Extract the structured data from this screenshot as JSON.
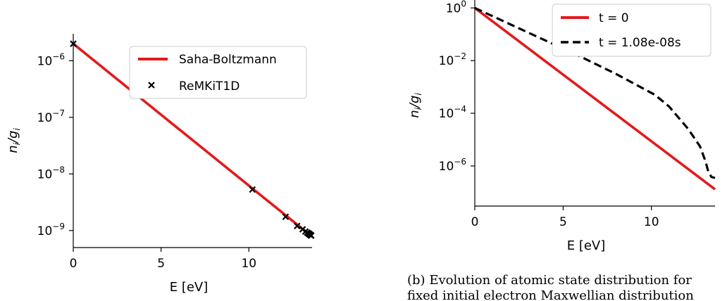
{
  "caption": {
    "label": "(b)",
    "line1": "Evolution of atomic state distribution for",
    "line2": "fixed initial electron Maxwellian distribution"
  },
  "chart_data": [
    {
      "type": "line",
      "xlabel": "E [eV]",
      "ylabel": "n_i/g_i",
      "xlim": [
        0,
        13.6
      ],
      "ylim": [
        5e-10,
        3e-06
      ],
      "yscale": "log",
      "xticks": [
        "0",
        "5",
        "10"
      ],
      "yticks": [
        "10^-6",
        "10^-7",
        "10^-8",
        "10^-9"
      ],
      "legend_position": "top-right",
      "series": [
        {
          "name": "Saha-Boltzmann",
          "style": "line",
          "color": "#e31a1c",
          "x": [
            0,
            13.6
          ],
          "y": [
            2e-06,
            7.8e-10
          ]
        },
        {
          "name": "ReMKiT1D",
          "style": "marker-x",
          "color": "#000000",
          "x": [
            0,
            10.2,
            12.09,
            12.75,
            13.06,
            13.22,
            13.32,
            13.39,
            13.43,
            13.46,
            13.48,
            13.5,
            13.52,
            13.53,
            13.54,
            13.55
          ],
          "y": [
            2e-06,
            5.3e-09,
            1.75e-09,
            1.2e-09,
            1.05e-09,
            9.6e-10,
            9.2e-10,
            8.9e-10,
            8.7e-10,
            8.55e-10,
            8.45e-10,
            8.35e-10,
            8.3e-10,
            8.25e-10,
            8.2e-10,
            8.15e-10
          ]
        }
      ]
    },
    {
      "type": "line",
      "xlabel": "E [eV]",
      "ylabel": "n_i/g_i",
      "xlim": [
        0,
        13.6
      ],
      "ylim": [
        3e-08,
        2.0
      ],
      "yscale": "log",
      "xticks": [
        "0",
        "5",
        "10"
      ],
      "yticks": [
        "10^0",
        "10^-2",
        "10^-4",
        "10^-6"
      ],
      "legend_position": "top-right",
      "series": [
        {
          "name": "t = 0",
          "style": "solid",
          "color": "#e31a1c",
          "x": [
            0,
            13.6
          ],
          "y": [
            1.0,
            1.3e-07
          ]
        },
        {
          "name": "t = 1.08e-08s",
          "style": "dashed",
          "color": "#000000",
          "x": [
            0,
            2,
            4,
            6,
            8,
            10.2,
            11,
            12.09,
            12.75,
            13.06,
            13.22,
            13.4,
            13.6
          ],
          "y": [
            1.0,
            0.24,
            0.058,
            0.014,
            0.0031,
            0.0005,
            0.00018,
            2.5e-05,
            5.5e-06,
            1.5e-06,
            6e-07,
            3.8e-07,
            3.5e-07
          ]
        }
      ]
    }
  ]
}
